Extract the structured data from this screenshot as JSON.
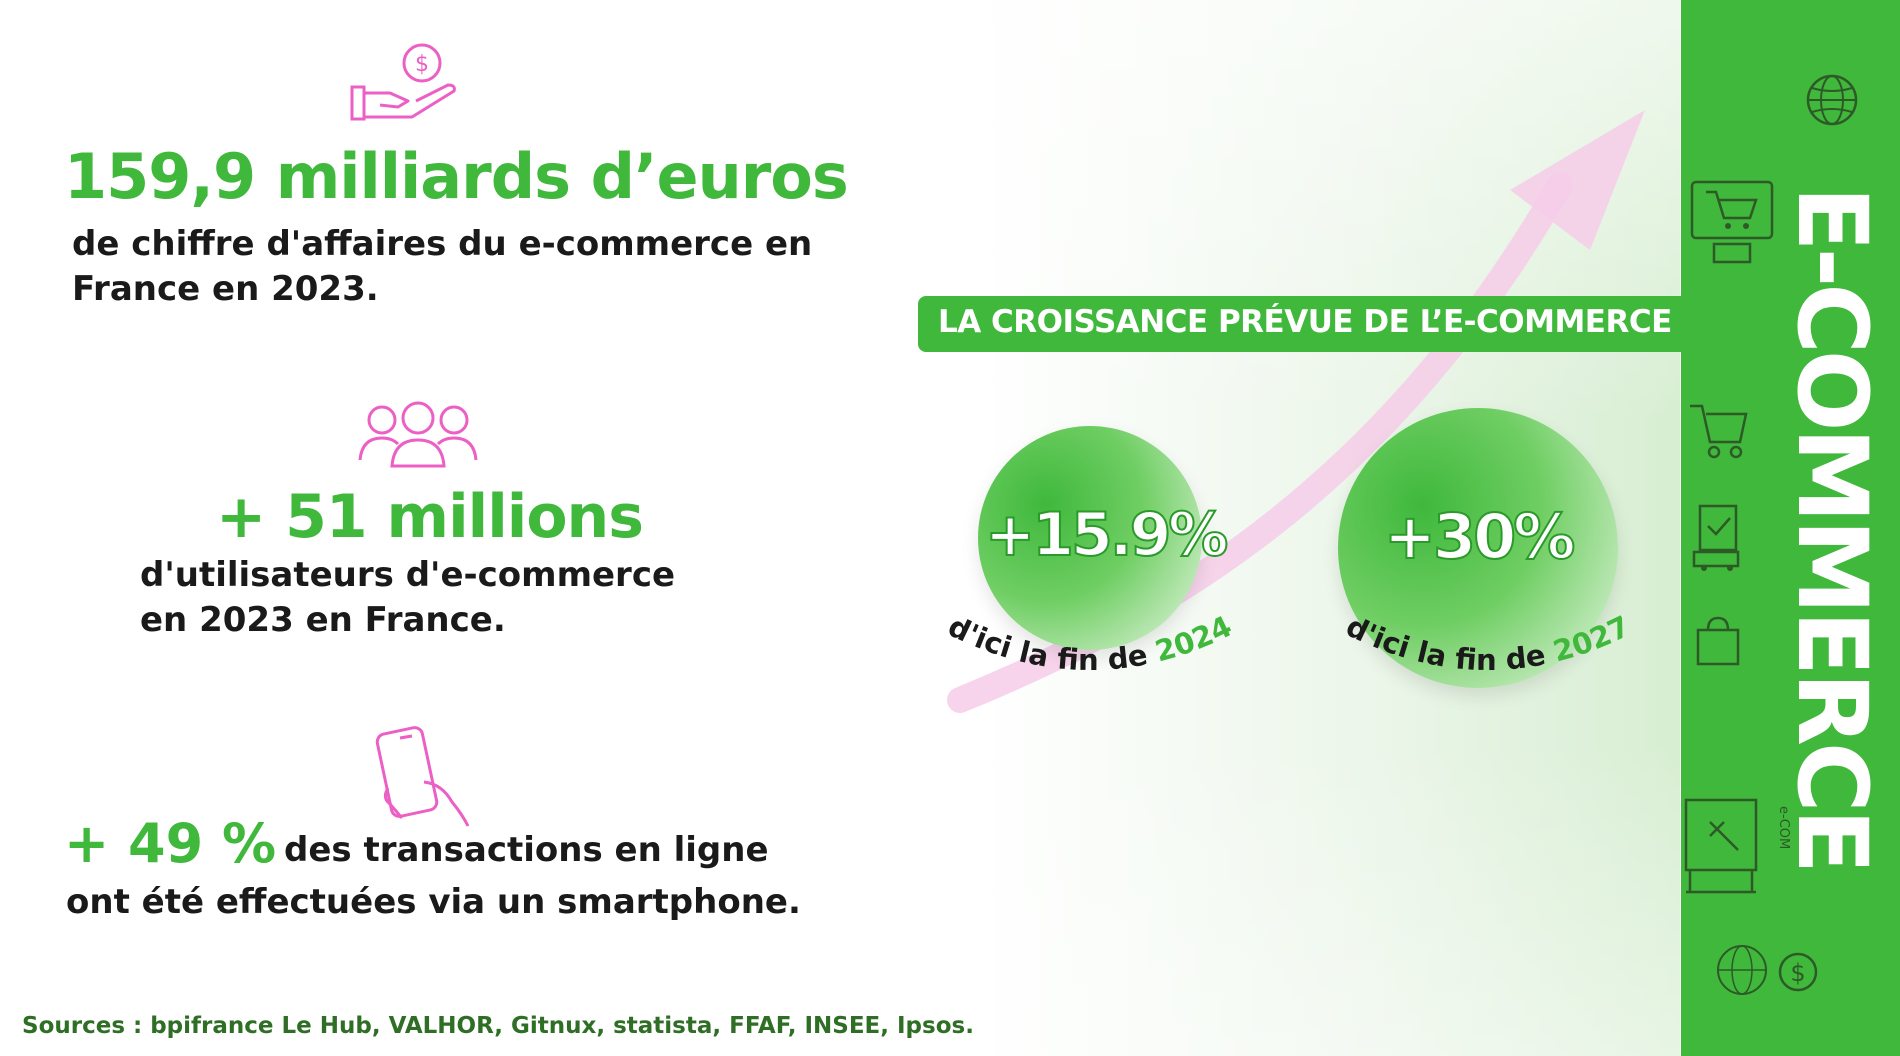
{
  "colors": {
    "green": "#3fb83c",
    "pink": "#ec5fc4",
    "dark": "#1a1a1a",
    "source_green": "#2e6e25"
  },
  "stats": [
    {
      "icon": "hand-money-icon",
      "headline": "159,9 milliards d’euros",
      "lines": [
        "de chiffre d'affaires du e-commerce en",
        "France en 2023."
      ]
    },
    {
      "icon": "users-group-icon",
      "headline": "+ 51 millions",
      "lines": [
        "d'utilisateurs d'e-commerce",
        "en 2023 en France."
      ]
    },
    {
      "icon": "smartphone-hand-icon",
      "headline": "+ 49 %",
      "inline_text": "des transactions en ligne",
      "lines": [
        "ont été effectuées via un smartphone."
      ]
    }
  ],
  "sources": "Sources : bpifrance Le Hub, VALHOR, Gitnux, statista, FFAF, INSEE, Ipsos.",
  "growth": {
    "banner": "LA CROISSANCE PRÉVUE DE L’E-COMMERCE",
    "items": [
      {
        "value": "+15.9%",
        "caption_prefix": "d'ici la fin de ",
        "year": "2024"
      },
      {
        "value": "+30%",
        "caption_prefix": "d'ici la fin de ",
        "year": "2027"
      }
    ]
  },
  "sidebar": {
    "title": "E-COMMERCE",
    "sign_text": "e-COM",
    "icons": [
      "globe-icon",
      "shop-screen-icon",
      "shopping-cart-icon",
      "delivery-box-icon",
      "shopping-bag-icon",
      "online-store-icon",
      "globe-dollar-icon"
    ]
  }
}
